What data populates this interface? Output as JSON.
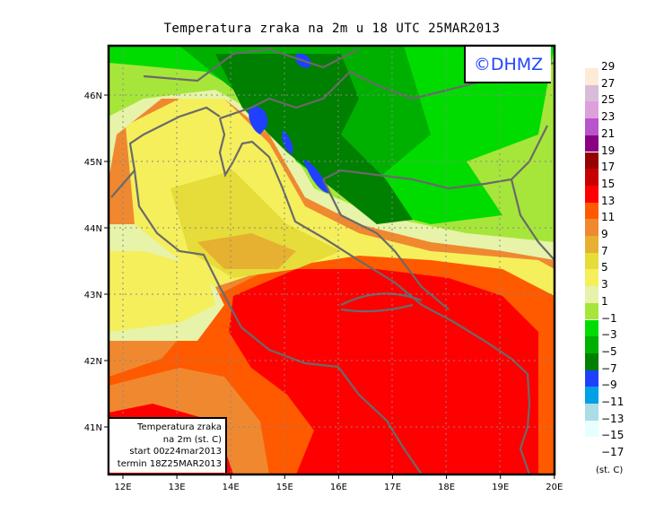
{
  "title": "Temperatura zraka na 2m u 18 UTC 25MAR2013",
  "logo": "©DHMZ",
  "info_box": [
    "Temperatura zraka",
    "na 2m (st. C)",
    "start 00z24mar2013",
    "termin 18Z25MAR2013"
  ],
  "lon_ticks": [
    "12E",
    "13E",
    "14E",
    "15E",
    "16E",
    "17E",
    "18E",
    "19E",
    "20E"
  ],
  "lat_ticks": [
    "41N",
    "42N",
    "43N",
    "44N",
    "45N",
    "46N"
  ],
  "legend": {
    "unit": "(st. C)",
    "labels": [
      "29",
      "27",
      "25",
      "23",
      "21",
      "19",
      "17",
      "15",
      "13",
      "11",
      "9",
      "7",
      "5",
      "3",
      "1",
      "−1",
      "−3",
      "−5",
      "−7",
      "−9",
      "−11",
      "−13",
      "−15",
      "−17"
    ],
    "colors": [
      "#fdebd8",
      "#d9bcd9",
      "#dda0dd",
      "#b855cc",
      "#8a0082",
      "#960000",
      "#c80000",
      "#ff0000",
      "#ff5a00",
      "#f08830",
      "#e6b030",
      "#e6dc3a",
      "#f5ef5c",
      "#e6f3a8",
      "#a6e63a",
      "#00dc00",
      "#00b000",
      "#008000",
      "#2040ff",
      "#00a0e6",
      "#aadde6",
      "#e6ffff"
    ]
  }
}
